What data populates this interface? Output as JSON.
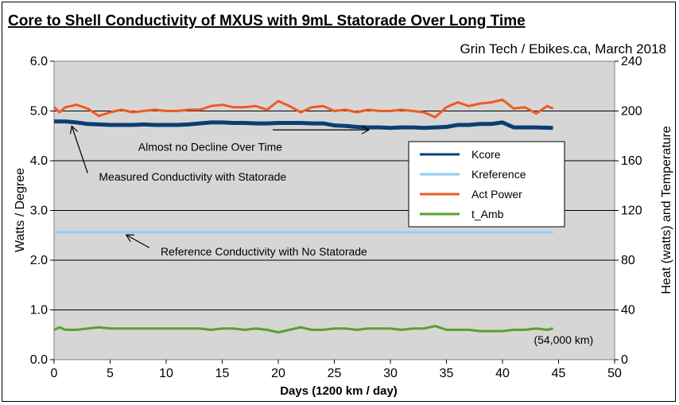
{
  "chart_data": {
    "type": "line",
    "title": "Core to Shell Conductivity of MXUS with 9mL Statorade Over Long Time",
    "subtitle": "Grin Tech / Ebikes.ca, March 2018",
    "xlabel": "Days (1200 km / day)",
    "ylabel_left": "Watts / Degree",
    "ylabel_right": "Heat (watts) and Temperature",
    "xlim": [
      0,
      50
    ],
    "ylim_left": [
      0,
      6
    ],
    "ylim_right": [
      0,
      240
    ],
    "x_ticks": [
      "0",
      "5",
      "10",
      "15",
      "20",
      "25",
      "30",
      "35",
      "40",
      "45",
      "50"
    ],
    "y_left_ticks": [
      "0.0",
      "1.0",
      "2.0",
      "3.0",
      "4.0",
      "5.0",
      "6.0"
    ],
    "y_right_ticks": [
      "0",
      "40",
      "80",
      "120",
      "160",
      "200",
      "240"
    ],
    "grid": "horizontal",
    "background": "#d6d6d6",
    "legend_position": "right",
    "series": [
      {
        "name": "Kcore",
        "axis": "left",
        "color": "#0b3f73",
        "x": [
          0,
          1,
          2,
          3,
          4,
          5,
          6,
          7,
          8,
          9,
          10,
          11,
          12,
          13,
          14,
          15,
          16,
          17,
          18,
          19,
          20,
          21,
          22,
          23,
          24,
          25,
          26,
          27,
          28,
          29,
          30,
          31,
          32,
          33,
          34,
          35,
          36,
          37,
          38,
          39,
          40,
          41,
          42,
          43,
          44.5
        ],
        "y": [
          4.79,
          4.79,
          4.77,
          4.74,
          4.73,
          4.72,
          4.72,
          4.72,
          4.73,
          4.72,
          4.72,
          4.72,
          4.73,
          4.75,
          4.77,
          4.77,
          4.76,
          4.76,
          4.75,
          4.75,
          4.76,
          4.76,
          4.76,
          4.75,
          4.75,
          4.71,
          4.7,
          4.68,
          4.67,
          4.67,
          4.66,
          4.67,
          4.67,
          4.66,
          4.67,
          4.68,
          4.72,
          4.72,
          4.74,
          4.74,
          4.77,
          4.67,
          4.67,
          4.67,
          4.66
        ]
      },
      {
        "name": "Kreference",
        "axis": "left",
        "color": "#8ecdf2",
        "x": [
          0,
          44.5
        ],
        "y": [
          2.56,
          2.56
        ]
      },
      {
        "name": "Act Power",
        "axis": "right",
        "color": "#f05a23",
        "x": [
          0,
          0.5,
          1,
          2,
          3,
          4,
          5,
          6,
          7,
          8,
          9,
          10,
          11,
          12,
          13,
          14,
          15,
          16,
          17,
          18,
          19,
          20,
          21,
          22,
          23,
          24,
          25,
          26,
          27,
          28,
          29,
          30,
          31,
          32,
          33,
          34,
          35,
          36,
          37,
          38,
          39,
          40,
          41,
          42,
          43,
          44,
          44.5
        ],
        "y": [
          203,
          199,
          203,
          205,
          202,
          196,
          199,
          201,
          199,
          200,
          201,
          200,
          200,
          201,
          201,
          204,
          205,
          203,
          203,
          204,
          201,
          208,
          204,
          199,
          203,
          204,
          200,
          201,
          199,
          201,
          200,
          200,
          201,
          200,
          199,
          195,
          203,
          207,
          204,
          206,
          207,
          209,
          202,
          203,
          198,
          204,
          202
        ]
      },
      {
        "name": "t_Amb",
        "axis": "right",
        "color": "#5aa02c",
        "x": [
          0,
          0.5,
          1,
          2,
          3,
          4,
          5,
          6,
          7,
          8,
          9,
          10,
          11,
          12,
          13,
          14,
          15,
          16,
          17,
          18,
          19,
          20,
          21,
          22,
          23,
          24,
          25,
          26,
          27,
          28,
          29,
          30,
          31,
          32,
          33,
          34,
          35,
          36,
          37,
          38,
          39,
          40,
          41,
          42,
          43,
          44,
          44.5
        ],
        "y": [
          24,
          26,
          24,
          24,
          25,
          26,
          25,
          25,
          25,
          25,
          25,
          25,
          25,
          25,
          25,
          24,
          25,
          25,
          24,
          25,
          24,
          22,
          24,
          26,
          24,
          24,
          25,
          25,
          24,
          25,
          25,
          25,
          24,
          25,
          25,
          27,
          24,
          24,
          24,
          23,
          23,
          23,
          24,
          24,
          25,
          24,
          25
        ]
      }
    ],
    "annotations": [
      {
        "text": "Almost no Decline Over Time",
        "x": 7.5,
        "y_left": 4.2,
        "arrow_from": [
          19.5,
          4.62
        ],
        "arrow_to": [
          28,
          4.62
        ]
      },
      {
        "text": "Measured Conductivity with Statorade",
        "x": 4,
        "y_left": 3.6,
        "arrow_from": [
          3,
          3.75
        ],
        "arrow_to": [
          1.6,
          4.68
        ]
      },
      {
        "text": "Reference Conductivity with No Statorade",
        "x": 9.5,
        "y_left": 2.1,
        "arrow_from": [
          8.5,
          2.25
        ],
        "arrow_to": [
          6.5,
          2.5
        ]
      },
      {
        "text": "(54,000 km)",
        "x": 42.8,
        "y_left": 0.32
      }
    ]
  }
}
